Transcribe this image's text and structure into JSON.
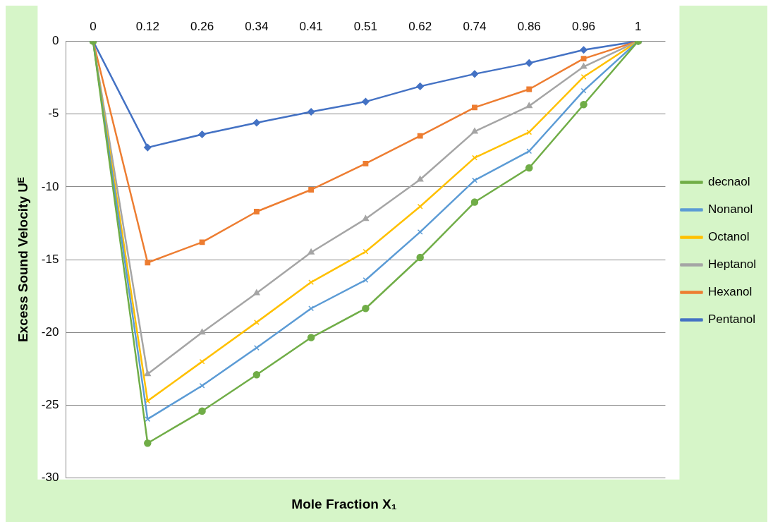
{
  "chart_data": {
    "type": "line",
    "xlabel": "Mole Fraction X₁",
    "ylabel": "Excess Sound Velocity Uᴱ",
    "categories": [
      "0",
      "0.12",
      "0.26",
      "0.34",
      "0.41",
      "0.51",
      "0.62",
      "0.74",
      "0.86",
      "0.96",
      "1"
    ],
    "ylim": [
      -30,
      0
    ],
    "yticks": [
      -30,
      -25,
      -20,
      -15,
      -10,
      -5,
      0
    ],
    "grid": "y",
    "legend": "right",
    "series": [
      {
        "name": "decnaol",
        "color": "#70ad47",
        "marker": "circle",
        "values": [
          0,
          -27.6,
          -25.4,
          -22.9,
          -20.35,
          -18.35,
          -14.85,
          -11.05,
          -8.7,
          -4.35,
          0
        ]
      },
      {
        "name": "Nonanol",
        "color": "#5b9bd5",
        "marker": "cross",
        "values": [
          0,
          -25.95,
          -23.65,
          -21.05,
          -18.35,
          -16.4,
          -13.1,
          -9.55,
          -7.55,
          -3.4,
          0
        ]
      },
      {
        "name": "Octanol",
        "color": "#ffc000",
        "marker": "cross",
        "values": [
          0,
          -24.7,
          -22.0,
          -19.3,
          -16.55,
          -14.45,
          -11.35,
          -8.0,
          -6.25,
          -2.45,
          0
        ]
      },
      {
        "name": "Heptanol",
        "color": "#a5a5a5",
        "marker": "triangle",
        "values": [
          0,
          -22.85,
          -20.0,
          -17.3,
          -14.5,
          -12.2,
          -9.5,
          -6.2,
          -4.45,
          -1.75,
          0
        ]
      },
      {
        "name": "Hexanol",
        "color": "#ed7d31",
        "marker": "square",
        "values": [
          0,
          -15.2,
          -13.8,
          -11.7,
          -10.2,
          -8.4,
          -6.5,
          -4.55,
          -3.3,
          -1.2,
          0
        ]
      },
      {
        "name": "Pentanol",
        "color": "#4472c4",
        "marker": "diamond",
        "values": [
          0,
          -7.3,
          -6.4,
          -5.6,
          -4.85,
          -4.15,
          -3.1,
          -2.25,
          -1.5,
          -0.6,
          0
        ]
      }
    ]
  }
}
